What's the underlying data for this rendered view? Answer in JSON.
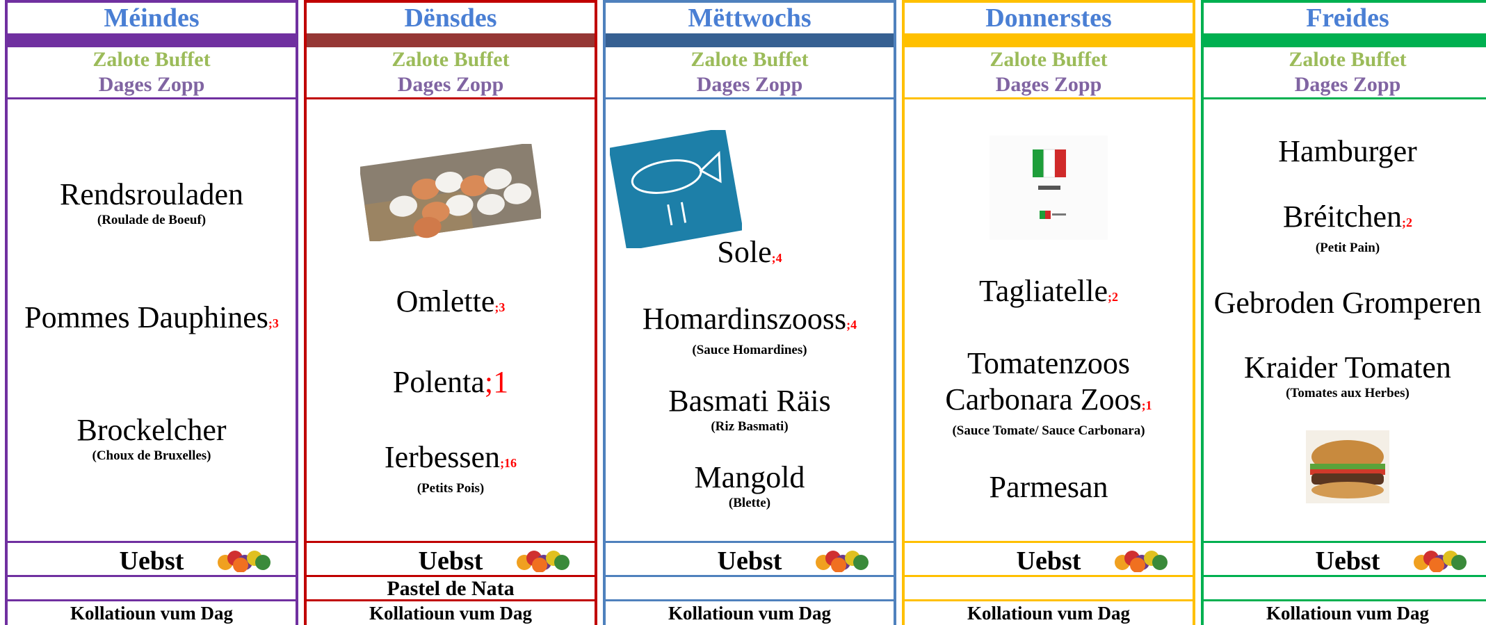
{
  "days": [
    {
      "name": "Méindes",
      "color": "#7030a0",
      "bar": "#7030a0",
      "salad": "Zalote Buffet",
      "soup": "Dages Zopp",
      "dishes": [
        {
          "name": "Rendsrouladen",
          "note": "(Roulade de Boeuf)"
        },
        {
          "name": "Pommes Dauphines",
          "allergen": ";3"
        },
        {
          "name": "Brockelcher",
          "note": "(Choux de Bruxelles)"
        }
      ],
      "fruit": "Uebst",
      "snack": "Kollatioun vum Dag"
    },
    {
      "name": "Dënsdes",
      "color": "#c00000",
      "bar": "#953735",
      "salad": "Zalote Buffet",
      "soup": "Dages Zopp",
      "dishes": [
        {
          "name": "Omlette",
          "allergen": ";3"
        },
        {
          "name": "Polenta",
          "allergen": ";1"
        },
        {
          "name": "Ierbessen",
          "allergen": ";16",
          "note": "(Petits Pois)"
        }
      ],
      "fruit": "Uebst",
      "extra": "Pastel de Nata",
      "snack": "Kollatioun vum Dag"
    },
    {
      "name": "Mëttwochs",
      "color": "#4f81bd",
      "bar": "#366092",
      "salad": "Zalote Buffet",
      "soup": "Dages Zopp",
      "dishes": [
        {
          "name": "Sole",
          "allergen": ";4"
        },
        {
          "name": "Homardinszooss",
          "allergen": ";4",
          "note": "(Sauce Homardines)"
        },
        {
          "name": "Basmati Räis",
          "note": "(Riz Basmati)"
        },
        {
          "name": "Mangold",
          "note": "(Blette)"
        }
      ],
      "fruit": "Uebst",
      "snack": "Kollatioun vum Dag"
    },
    {
      "name": "Donnerstes",
      "color": "#ffc000",
      "bar": "#ffc000",
      "salad": "Zalote Buffet",
      "soup": "Dages Zopp",
      "dishes": [
        {
          "name": "Tagliatelle",
          "allergen": ";2"
        },
        {
          "name": "Tomatenzoos Carbonara Zoos",
          "allergen": ";1",
          "note": "(Sauce Tomate/ Sauce Carbonara)"
        },
        {
          "name": "Parmesan"
        }
      ],
      "fruit": "Uebst",
      "snack": "Kollatioun vum Dag"
    },
    {
      "name": "Freides",
      "color": "#00b050",
      "bar": "#00b050",
      "salad": "Zalote Buffet",
      "soup": "Dages Zopp",
      "dishes": [
        {
          "name": "Hamburger"
        },
        {
          "name": "Bréitchen",
          "allergen": ";2",
          "note": "(Petit Pain)"
        },
        {
          "name": "Gebroden Gromperen"
        },
        {
          "name": "Kraider Tomaten",
          "note": "(Tomates aux Herbes)"
        }
      ],
      "fruit": "Uebst",
      "snack": "Kollatioun vum Dag"
    }
  ]
}
